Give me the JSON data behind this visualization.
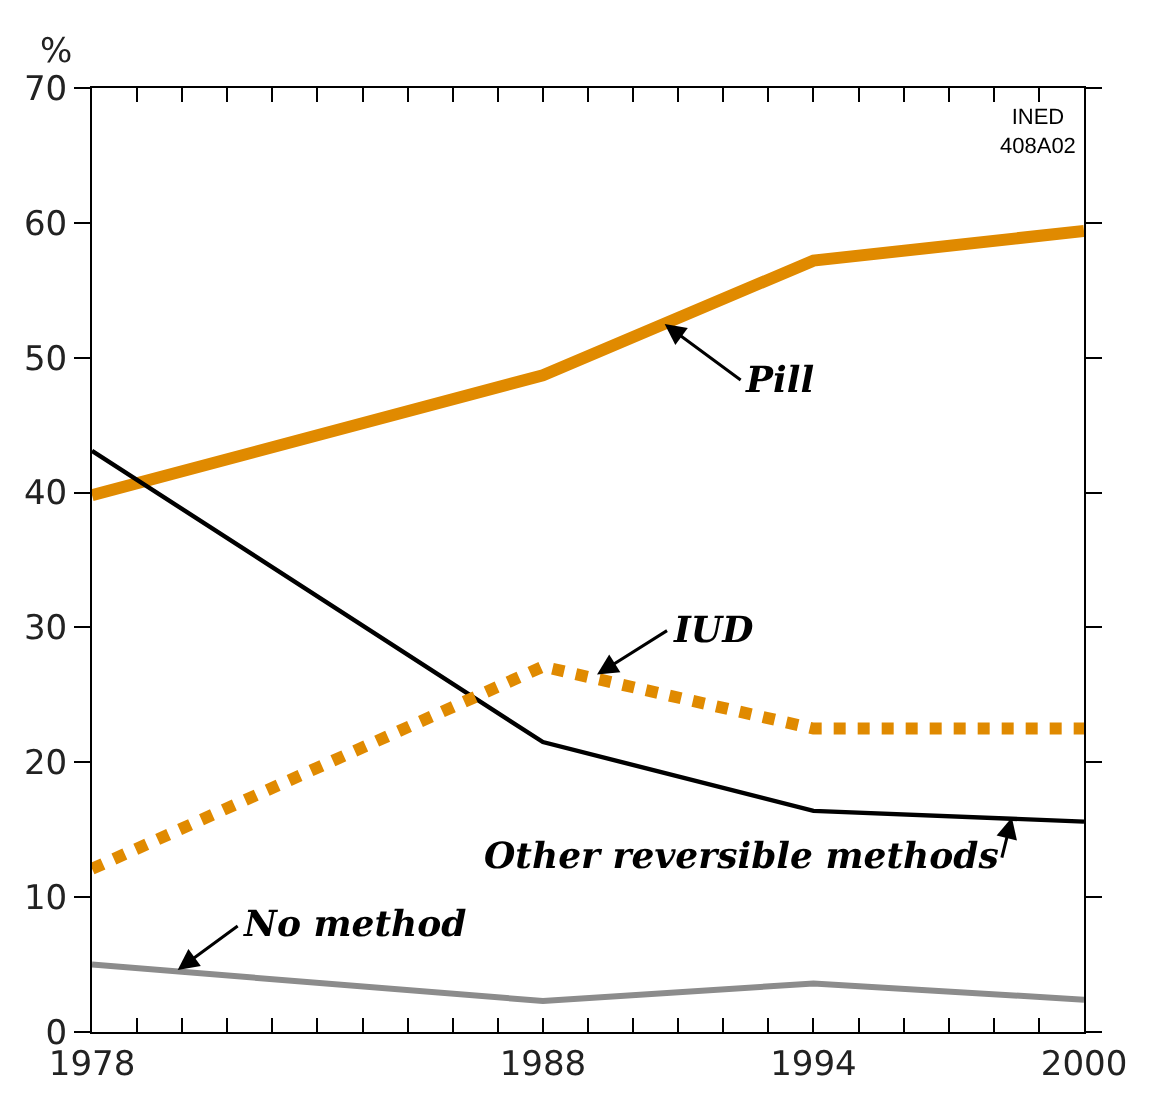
{
  "chart_data": {
    "type": "line",
    "x": [
      1978,
      1988,
      1994,
      2000
    ],
    "series": [
      {
        "color": "#e08a00",
        "values": [
          39.8,
          48.7,
          57.2,
          59.4
        ],
        "line_style": "solid"
      },
      {
        "color": "#000000",
        "values": [
          43.1,
          21.5,
          16.4,
          15.6
        ],
        "line_style": "solid"
      },
      {
        "color": "#e08a00",
        "values": [
          12.1,
          27.1,
          22.5,
          22.5
        ],
        "line_style": "dotted"
      },
      {
        "color": "#8c8c8c",
        "values": [
          5.0,
          2.3,
          3.6,
          2.4
        ],
        "line_style": "solid"
      }
    ],
    "ylabel": "%",
    "xlim": [
      1978,
      2000
    ],
    "ylim": [
      0,
      70
    ],
    "yticks": [
      0,
      10,
      20,
      30,
      40,
      50,
      60,
      70
    ],
    "xticks": [
      1978,
      {
        "value": 1979,
        "label": null
      },
      {
        "value": 1980,
        "label": null
      },
      {
        "value": 1981,
        "label": null
      },
      {
        "value": 1982,
        "label": null
      },
      {
        "value": 1983,
        "label": null
      },
      {
        "value": 1984,
        "label": null
      },
      {
        "value": 1985,
        "label": null
      },
      {
        "value": 1986,
        "label": null
      },
      {
        "value": 1987,
        "label": null
      },
      1988,
      {
        "value": 1989,
        "label": null
      },
      {
        "value": 1990,
        "label": null
      },
      {
        "value": 1991,
        "label": null
      },
      {
        "value": 1992,
        "label": null
      },
      {
        "value": 1993,
        "label": null
      },
      1994,
      {
        "value": 1995,
        "label": null
      },
      {
        "value": 1996,
        "label": null
      },
      {
        "value": 1997,
        "label": null
      },
      {
        "value": 1998,
        "label": null
      },
      {
        "value": 1999,
        "label": null
      },
      2000
    ],
    "marker": "none",
    "annotations": [
      {
        "text": "Pill",
        "x": 1990.7,
        "y": 52.5
      },
      {
        "text": "IUD",
        "x": 1989.2,
        "y": 26.5
      },
      {
        "text": "Other reversible methods",
        "x": 1998.4,
        "y": 15.9
      },
      {
        "text": "No method",
        "x": 1979.9,
        "y": 4.6
      },
      "INED\n408A02"
    ]
  }
}
